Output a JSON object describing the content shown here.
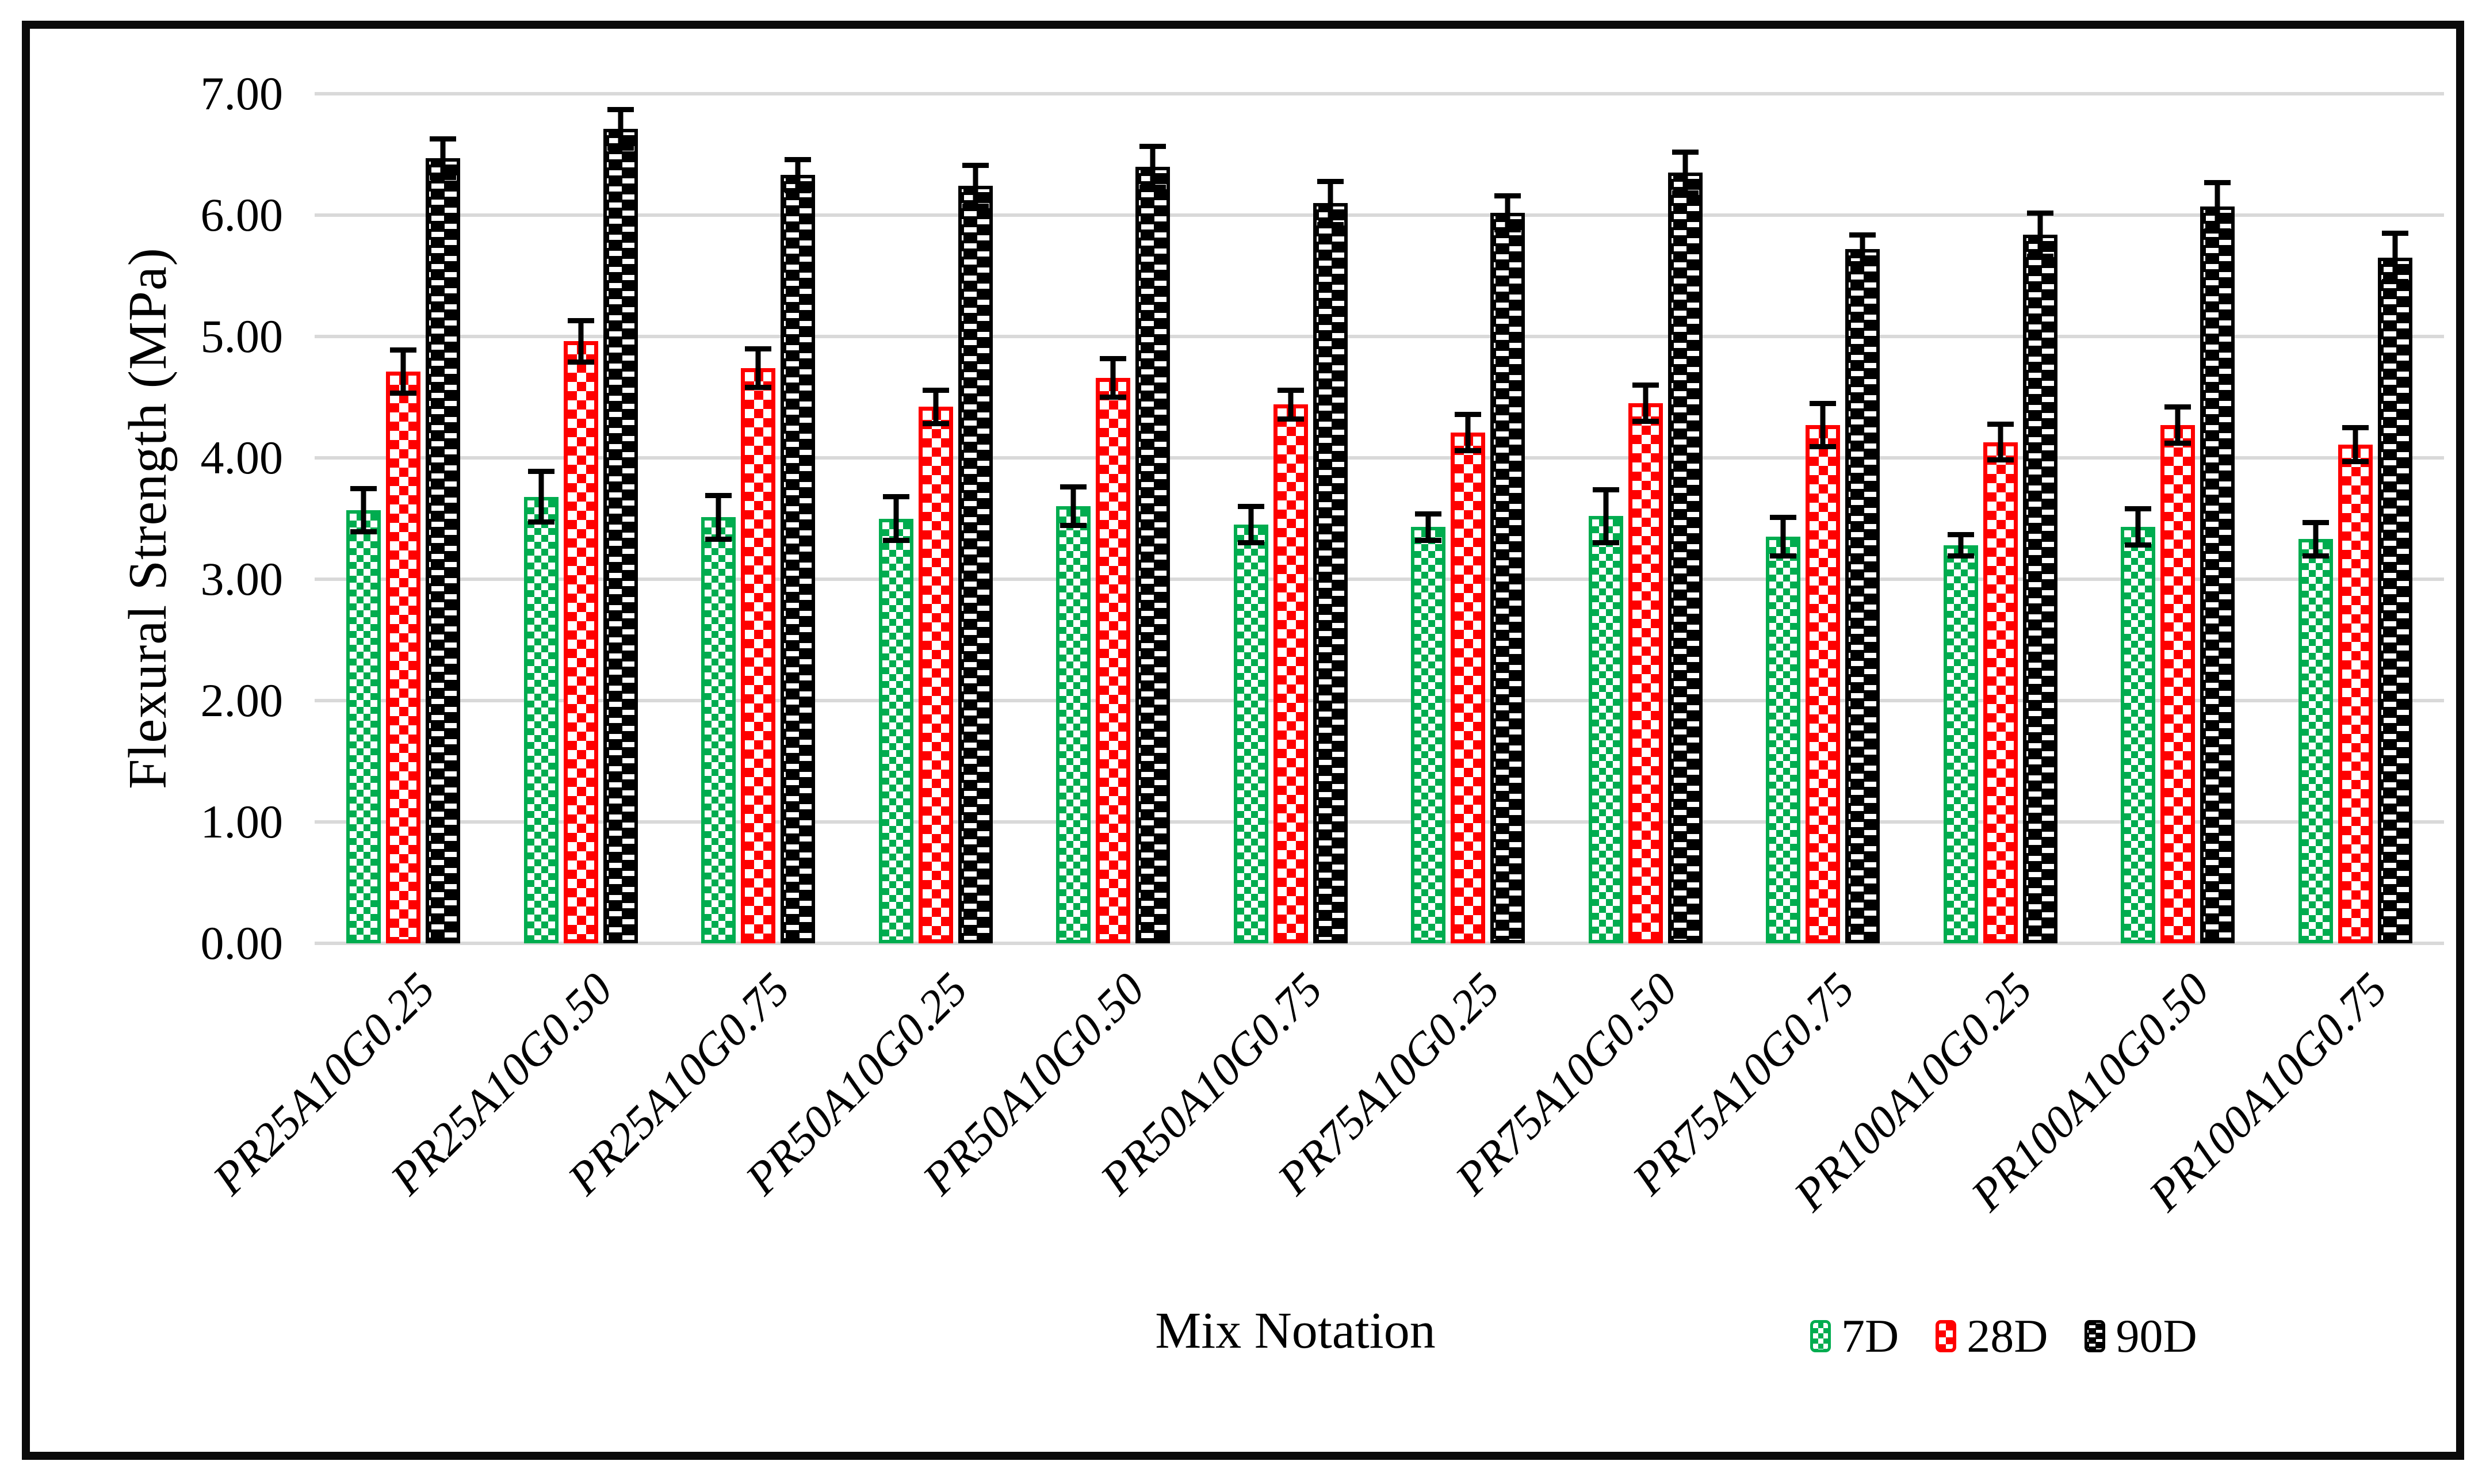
{
  "chart_data": {
    "type": "bar",
    "title": "",
    "xlabel": "Mix Notation",
    "ylabel": "Flexural Strength (MPa)",
    "ylim": [
      0,
      7
    ],
    "ytick_step": 1,
    "yticks": [
      "0.00",
      "1.00",
      "2.00",
      "3.00",
      "4.00",
      "5.00",
      "6.00",
      "7.00"
    ],
    "grid": true,
    "gridline_color": "#D9D9D9",
    "legend_position": "bottom-right",
    "frame_color": "#0a0a0a",
    "categories": [
      "PR25A10G0.25",
      "PR25A10G0.50",
      "PR25A10G0.75",
      "PR50A10G0.25",
      "PR50A10G0.50",
      "PR50A10G0.75",
      "PR75A10G0.25",
      "PR75A10G0.50",
      "PR75A10G0.75",
      "PR100A10G0.25",
      "PR100A10G0.50",
      "PR100A10G0.75"
    ],
    "series": [
      {
        "name": "7D",
        "color": "#00AC4F",
        "pattern": "small-checker",
        "values": [
          3.57,
          3.68,
          3.51,
          3.5,
          3.6,
          3.45,
          3.43,
          3.52,
          3.35,
          3.28,
          3.43,
          3.33
        ],
        "errors": [
          0.2,
          0.23,
          0.2,
          0.2,
          0.18,
          0.17,
          0.13,
          0.24,
          0.18,
          0.11,
          0.17,
          0.16
        ]
      },
      {
        "name": "28D",
        "color": "#FE0000",
        "pattern": "checker",
        "values": [
          4.71,
          4.96,
          4.74,
          4.42,
          4.66,
          4.44,
          4.21,
          4.45,
          4.27,
          4.13,
          4.27,
          4.11
        ],
        "errors": [
          0.2,
          0.19,
          0.18,
          0.16,
          0.18,
          0.14,
          0.17,
          0.17,
          0.2,
          0.17,
          0.17,
          0.16
        ]
      },
      {
        "name": "90D",
        "color": "#000000",
        "pattern": "dashes",
        "values": [
          6.47,
          6.71,
          6.33,
          6.24,
          6.4,
          6.1,
          6.02,
          6.35,
          5.72,
          5.84,
          6.07,
          5.65
        ],
        "errors": [
          0.18,
          0.18,
          0.15,
          0.19,
          0.19,
          0.2,
          0.16,
          0.19,
          0.14,
          0.2,
          0.22,
          0.22
        ]
      }
    ]
  }
}
